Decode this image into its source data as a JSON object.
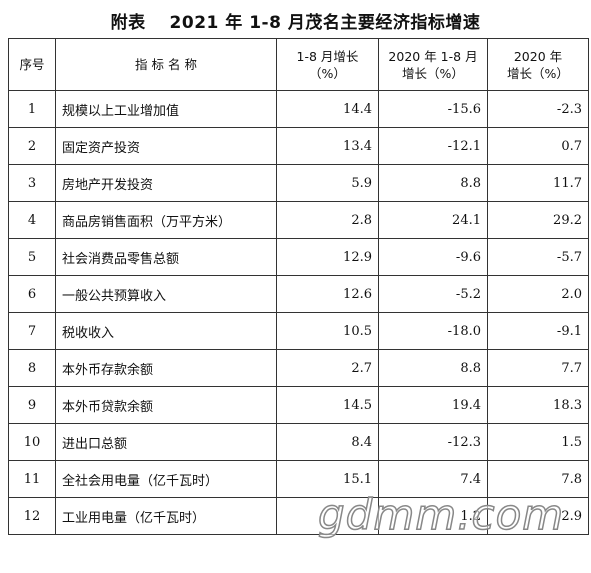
{
  "title": "附表　 2021 年 1-8 月茂名主要经济指标增速",
  "table": {
    "header": [
      [
        "序号"
      ],
      [
        "指 标 名 称"
      ],
      [
        "1-8 月增长",
        "（%）"
      ],
      [
        "2020 年 1-8 月",
        "增长（%）"
      ],
      [
        "2020 年",
        "增长（%）"
      ]
    ],
    "rows": [
      [
        "1",
        "规模以上工业增加值",
        "14.4",
        "-15.6",
        "-2.3"
      ],
      [
        "2",
        "固定资产投资",
        "13.4",
        "-12.1",
        "0.7"
      ],
      [
        "3",
        "房地产开发投资",
        "5.9",
        "8.8",
        "11.7"
      ],
      [
        "4",
        "商品房销售面积（万平方米）",
        "2.8",
        "24.1",
        "29.2"
      ],
      [
        "5",
        "社会消费品零售总额",
        "12.9",
        "-9.6",
        "-5.7"
      ],
      [
        "6",
        "一般公共预算收入",
        "12.6",
        "-5.2",
        "2.0"
      ],
      [
        "7",
        "税收收入",
        "10.5",
        "-18.0",
        "-9.1"
      ],
      [
        "8",
        "本外币存款余额",
        "2.7",
        "8.8",
        "7.7"
      ],
      [
        "9",
        "本外币贷款余额",
        "14.5",
        "19.4",
        "18.3"
      ],
      [
        "10",
        "进出口总额",
        "8.4",
        "-12.3",
        "1.5"
      ],
      [
        "11",
        "全社会用电量（亿千瓦时）",
        "15.1",
        "7.4",
        "7.8"
      ],
      [
        "12",
        "工业用电量（亿千瓦时）",
        "",
        "1.2",
        "2.9"
      ]
    ]
  },
  "watermark": "gdmm.com"
}
